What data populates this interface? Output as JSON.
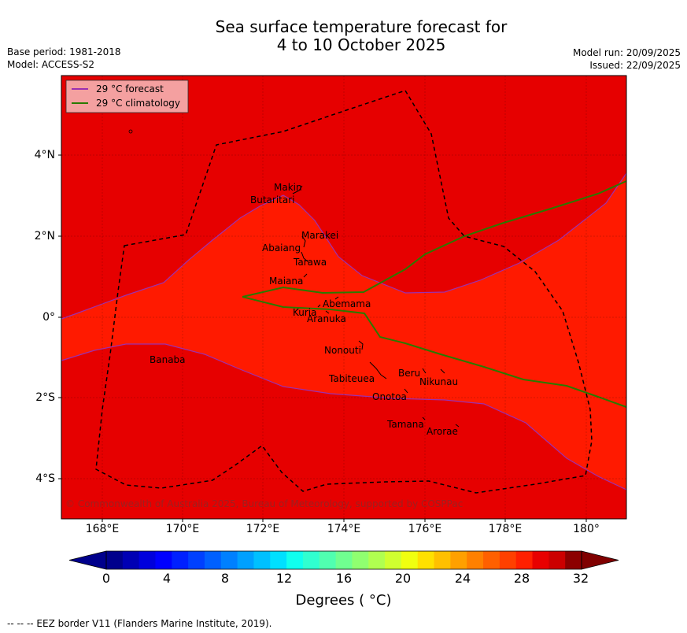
{
  "title_line1": "Sea surface temperature forecast for",
  "title_line2": "4 to 10 October 2025",
  "left_meta": {
    "base_period": "Base period: 1981-2018",
    "model": "Model: ACCESS-S2"
  },
  "right_meta": {
    "model_run": "Model run: 20/09/2025",
    "issued": "Issued: 22/09/2025"
  },
  "legend": [
    {
      "label": "29 °C  forecast",
      "color": "#9b30b0"
    },
    {
      "label": "29 °C  climatology",
      "color": "#2a7a00"
    }
  ],
  "y_ticks": [
    "4°N",
    "2°N",
    "0°",
    "2°S",
    "4°S"
  ],
  "x_ticks": [
    "168°E",
    "170°E",
    "172°E",
    "174°E",
    "176°E",
    "178°E",
    "180°"
  ],
  "places": [
    {
      "name": "Makin"
    },
    {
      "name": "Butaritari"
    },
    {
      "name": "Marakei"
    },
    {
      "name": "Abaiang"
    },
    {
      "name": "Tarawa"
    },
    {
      "name": "Maiana"
    },
    {
      "name": "Abemama"
    },
    {
      "name": "Kuria"
    },
    {
      "name": "Aranuka"
    },
    {
      "name": "Nonouti"
    },
    {
      "name": "Banaba"
    },
    {
      "name": "Tabiteuea"
    },
    {
      "name": "Beru"
    },
    {
      "name": "Nikunau"
    },
    {
      "name": "Onotoa"
    },
    {
      "name": "Tamana"
    },
    {
      "name": "Arorae"
    }
  ],
  "copyright": "© Commonwealth of Australia 2025, Bureau of Meteorology, supported by COSPPac",
  "colorbar": {
    "ticks": [
      "0",
      "4",
      "8",
      "12",
      "16",
      "20",
      "24",
      "28",
      "32"
    ],
    "colors": [
      "#00008c",
      "#0000b4",
      "#0000dc",
      "#0000ff",
      "#0020ff",
      "#0040ff",
      "#0060ff",
      "#0080ff",
      "#00a0ff",
      "#00c0ff",
      "#00e0ff",
      "#10ffee",
      "#30ffd0",
      "#50ffb0",
      "#70ff90",
      "#90ff70",
      "#b0ff50",
      "#d0ff30",
      "#f0ff10",
      "#ffe000",
      "#ffc000",
      "#ffa000",
      "#ff8000",
      "#ff6000",
      "#ff4000",
      "#ff2000",
      "#e80000",
      "#cc0000",
      "#8c0000"
    ],
    "under_color": "#00008c",
    "over_color": "#800000",
    "unit_label": "Degrees ( °C)"
  },
  "map_colors": {
    "warm": "#e60000",
    "hot": "#ff1a00",
    "grid": "#000000"
  },
  "footer": "--  --  -- EEZ border V11 (Flanders Marine Institute, 2019)."
}
